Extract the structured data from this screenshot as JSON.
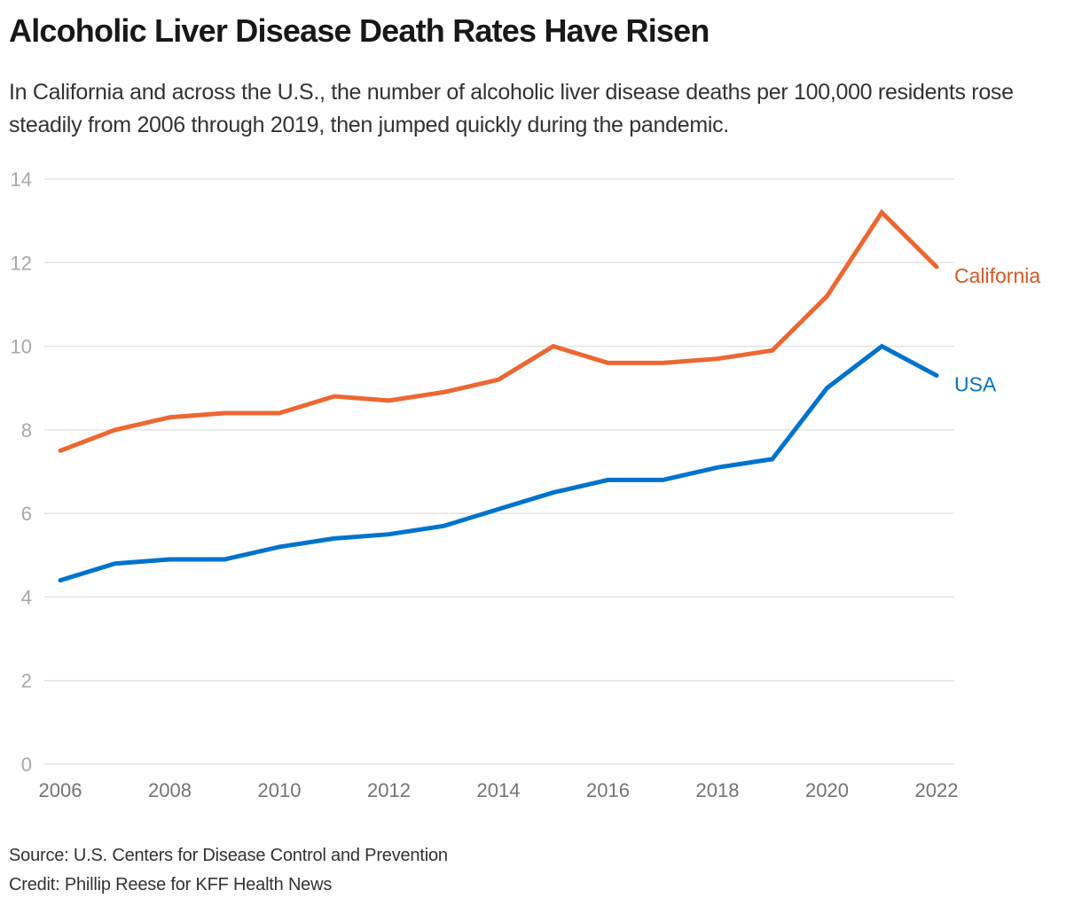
{
  "header": {
    "title": "Alcoholic Liver Disease Death Rates Have Risen",
    "subtitle": "In California and across the U.S., the number of alcoholic liver disease deaths per 100,000 residents rose steadily from 2006 through 2019, then jumped quickly during the pandemic."
  },
  "footer": {
    "source": "Source: U.S. Centers for Disease Control and Prevention",
    "credit": "Credit: Phillip Reese for KFF Health News"
  },
  "chart_data": {
    "type": "line",
    "title": "Alcoholic Liver Disease Death Rates Have Risen",
    "xlabel": "",
    "ylabel": "",
    "x": [
      2006,
      2007,
      2008,
      2009,
      2010,
      2011,
      2012,
      2013,
      2014,
      2015,
      2016,
      2017,
      2018,
      2019,
      2020,
      2021,
      2022
    ],
    "xlim": [
      2006,
      2022
    ],
    "ylim": [
      0,
      14
    ],
    "x_ticks": [
      "2006",
      "2008",
      "2010",
      "2012",
      "2014",
      "2016",
      "2018",
      "2020",
      "2022"
    ],
    "y_ticks": [
      "0",
      "2",
      "4",
      "6",
      "8",
      "10",
      "12",
      "14"
    ],
    "grid": true,
    "legend": "direct labels at line ends (right)",
    "series": [
      {
        "name": "California",
        "color": "#ec6833",
        "label_color": "#d9552a",
        "values": [
          7.5,
          8.0,
          8.3,
          8.4,
          8.4,
          8.8,
          8.7,
          8.9,
          9.2,
          10.0,
          9.6,
          9.6,
          9.7,
          9.9,
          11.2,
          13.2,
          11.9
        ]
      },
      {
        "name": "USA",
        "color": "#0073cc",
        "label_color": "#0a72c4",
        "values": [
          4.4,
          4.8,
          4.9,
          4.9,
          5.2,
          5.4,
          5.5,
          5.7,
          6.1,
          6.5,
          6.8,
          6.8,
          7.1,
          7.3,
          9.0,
          10.0,
          9.3
        ]
      }
    ]
  }
}
